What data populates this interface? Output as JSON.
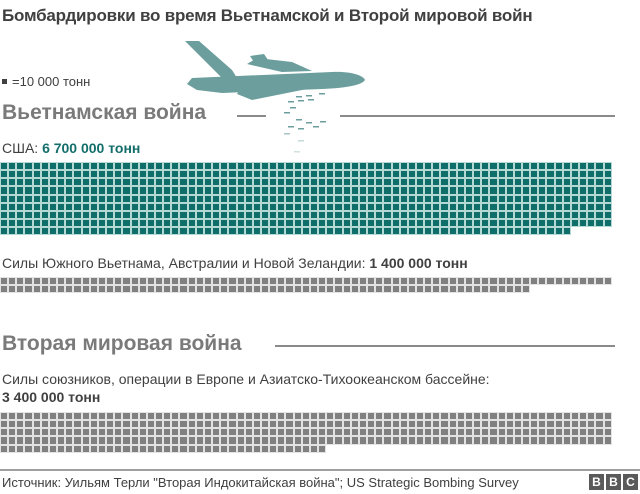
{
  "title": "Бомбардировки во время Вьетнамской и Второй мировой войн",
  "legend": {
    "unit_label": "=10 000 тонн",
    "unit_value": 10000
  },
  "sections": {
    "vietnam": {
      "heading": "Вьетнамская война",
      "us": {
        "label": "США: ",
        "value_label": "6 700 000 тонн",
        "tonnes": 6700000,
        "cells": 670,
        "color": "#0f6e6a"
      },
      "allies": {
        "label": "Силы Южного Вьетнама, Австралии и Новой Зеландии: ",
        "value_label": "1 400 000 тонн",
        "tonnes": 1400000,
        "cells": 140,
        "color": "#808080"
      }
    },
    "ww2": {
      "heading": "Вторая мировая война",
      "allies": {
        "label": "Силы союзников, операции в Европе и Азиатско-Тихоокеанском бассейне:",
        "value_label": "3 400 000 тонн",
        "tonnes": 3400000,
        "cells": 340,
        "color": "#808080"
      }
    }
  },
  "footer": {
    "source": "Источник: Уильям Терли \"Вторая Индокитайская война\"; US Strategic Bombing Survey",
    "logo": [
      "B",
      "B",
      "C"
    ]
  },
  "icons": {
    "plane": "bomber-plane-icon"
  },
  "chart_data": {
    "type": "table",
    "title": "Бомбардировки во время Вьетнамской и Второй мировой войн",
    "subtitle": "Unit chart: one square = 10 000 тонн",
    "categories": [
      "Вьетнамская война — США",
      "Вьетнамская война — Силы Южного Вьетнама, Австралии и Новой Зеландии",
      "Вторая мировая война — Силы союзников, операции в Европе и Азиатско-Тихоокеанском бассейне"
    ],
    "values": [
      6700000,
      1400000,
      3400000
    ],
    "unit": "тонн",
    "squares": [
      670,
      140,
      340
    ],
    "squares_per_row": 75,
    "colors": [
      "#0f6e6a",
      "#808080",
      "#808080"
    ],
    "legend": "■ =10 000 тонн",
    "source": "Уильям Терли \"Вторая Индокитайская война\"; US Strategic Bombing Survey"
  }
}
